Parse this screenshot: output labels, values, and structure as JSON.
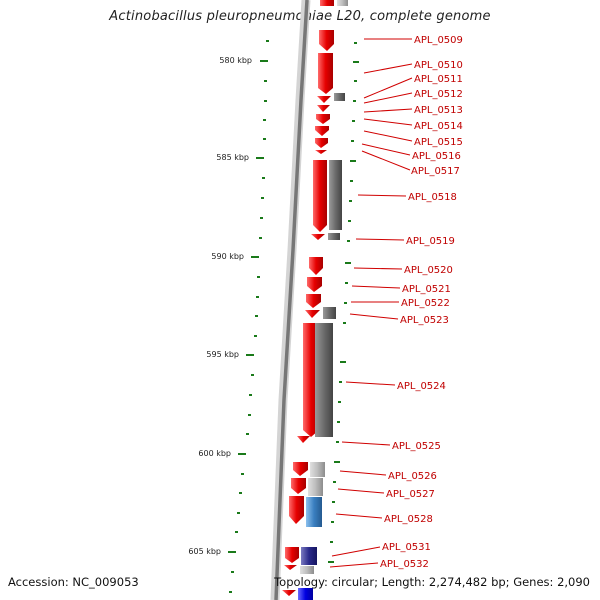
{
  "title": "Actinobacillus pleuropneumoniae L20, complete genome",
  "footer": {
    "accession": "Accession: NC_009053",
    "topology": "Topology: circular; Length: 2,274,482 bp; Genes: 2,090"
  },
  "scale_labels": [
    "580 kbp",
    "585 kbp",
    "590 kbp",
    "595 kbp",
    "600 kbp",
    "605 kbp"
  ],
  "gene_labels": [
    "APL_0509",
    "APL_0510",
    "APL_0511",
    "APL_0512",
    "APL_0513",
    "APL_0514",
    "APL_0515",
    "APL_0516",
    "APL_0517",
    "APL_0518",
    "APL_0519",
    "APL_0520",
    "APL_0521",
    "APL_0522",
    "APL_0523",
    "APL_0524",
    "APL_0525",
    "APL_0526",
    "APL_0527",
    "APL_0528",
    "APL_0531",
    "APL_0532"
  ],
  "colors": {
    "forward_cds": "#e60000",
    "label_red": "#c00000",
    "tick_green": "#1a7a1a",
    "backbone": "#888888",
    "gray_feature": "#666666",
    "blue_feature": "#3a7fc0",
    "navy_feature": "#2a2a8a"
  }
}
